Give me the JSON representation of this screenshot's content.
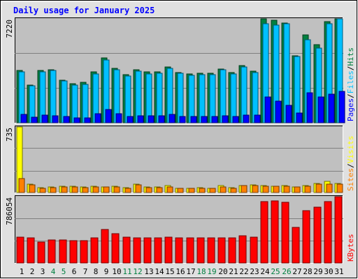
{
  "chart_data": {
    "type": "bar",
    "title": "Daily usage for January 2025",
    "categories": [
      "1",
      "2",
      "3",
      "4",
      "5",
      "6",
      "7",
      "8",
      "9",
      "10",
      "11",
      "12",
      "13",
      "14",
      "15",
      "16",
      "17",
      "18",
      "19",
      "20",
      "21",
      "22",
      "23",
      "24",
      "25",
      "26",
      "27",
      "28",
      "29",
      "30",
      "31"
    ],
    "weekend_days": [
      4,
      5,
      11,
      12,
      18,
      19,
      25,
      26
    ],
    "colors": {
      "hits": "#008040",
      "files": "#00c0ff",
      "pages": "#0000ff",
      "visits": "#ffff00",
      "sites": "#ff8000",
      "kbytes": "#ff0000",
      "title": "#0000ff",
      "weekend_day": "#008040",
      "weekday_day": "#000000",
      "panel_bg": "#c0c0c0",
      "frame_bg": "#e0e0e0"
    },
    "panels": [
      {
        "name": "hits-files-pages",
        "max_label": "7220",
        "ymax": 7220,
        "legend": [
          {
            "text": "Hits",
            "color": "#008040"
          },
          {
            "text": "Files",
            "color": "#00c0ff"
          },
          {
            "text": "Pages",
            "color": "#0000ff"
          }
        ],
        "series": [
          {
            "name": "Hits",
            "values": [
              3610,
              2600,
              3630,
              3680,
              2980,
              2690,
              2790,
              3530,
              4510,
              3780,
              3330,
              3680,
              3540,
              3530,
              3870,
              3500,
              3380,
              3420,
              3420,
              3730,
              3480,
              3960,
              3580,
              7200,
              7130,
              6950,
              4670,
              6090,
              5430,
              7020,
              7220
            ]
          },
          {
            "name": "Files",
            "values": [
              3540,
              2550,
              3560,
              3610,
              2920,
              2630,
              2650,
              3370,
              4360,
              3680,
              3240,
              3600,
              3410,
              3440,
              3800,
              3440,
              3310,
              3350,
              3350,
              3660,
              3410,
              3870,
              3490,
              6900,
              6800,
              6900,
              4600,
              5750,
              5200,
              6900,
              7220
            ]
          },
          {
            "name": "Pages",
            "values": [
              600,
              380,
              520,
              480,
              420,
              360,
              360,
              620,
              900,
              650,
              430,
              500,
              480,
              470,
              560,
              460,
              450,
              430,
              430,
              500,
              440,
              520,
              520,
              1800,
              1500,
              1200,
              700,
              2100,
              1800,
              2000,
              2200
            ]
          }
        ]
      },
      {
        "name": "visits-sites",
        "max_label": "735",
        "ymax": 735,
        "legend": [
          {
            "text": "Visits",
            "color": "#ffff00"
          },
          {
            "text": "Sites",
            "color": "#ff8000"
          }
        ],
        "series": [
          {
            "name": "Visits",
            "values": [
              735,
              95,
              55,
              60,
              68,
              70,
              60,
              68,
              64,
              69,
              55,
              95,
              60,
              60,
              75,
              50,
              50,
              55,
              50,
              75,
              55,
              80,
              85,
              75,
              72,
              75,
              65,
              75,
              105,
              125,
              105
            ]
          },
          {
            "name": "Sites",
            "values": [
              160,
              85,
              50,
              55,
              60,
              60,
              55,
              60,
              60,
              65,
              50,
              85,
              55,
              55,
              65,
              45,
              45,
              50,
              45,
              65,
              50,
              75,
              75,
              70,
              68,
              70,
              60,
              70,
              95,
              90,
              95
            ]
          }
        ]
      },
      {
        "name": "kbytes",
        "max_label": "786054",
        "ymax": 786054,
        "legend": [
          {
            "text": "KBytes",
            "color": "#ff0000"
          }
        ],
        "series": [
          {
            "name": "KBytes",
            "values": [
              310000,
              300000,
              250000,
              270000,
              270000,
              265000,
              265000,
              300000,
              395000,
              350000,
              310000,
              295000,
              295000,
              295000,
              310000,
              295000,
              295000,
              295000,
              295000,
              300000,
              300000,
              320000,
              310000,
              730000,
              735000,
              720000,
              420000,
              620000,
              660000,
              730000,
              786054
            ]
          }
        ]
      }
    ]
  }
}
